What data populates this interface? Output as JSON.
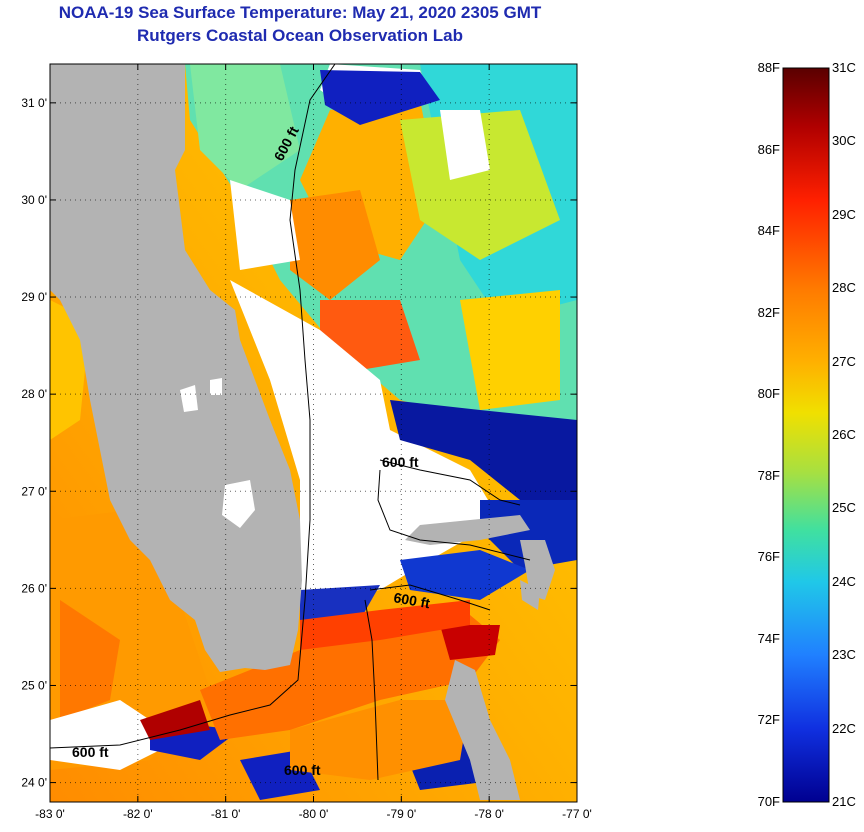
{
  "title": "NOAA-19 Sea Surface Temperature:  May 21, 2020 2305 GMT",
  "subtitle": "Rutgers Coastal Ocean Observation Lab",
  "map": {
    "lon_range": [
      -83,
      -77
    ],
    "lat_range": [
      23.8,
      31.4
    ],
    "lon_ticks": [
      "-83 0'",
      "-82 0'",
      "-81 0'",
      "-80 0'",
      "-79 0'",
      "-78 0'",
      "-77 0'"
    ],
    "lat_ticks": [
      "24 0'",
      "25 0'",
      "26 0'",
      "27 0'",
      "28 0'",
      "29 0'",
      "30 0'",
      "31 0'"
    ],
    "contour_label": "600 ft",
    "land_color": "#b3b3b3",
    "cloud_color": "#ffffff"
  },
  "colorbar": {
    "fahrenheit": [
      "88F",
      "86F",
      "84F",
      "82F",
      "80F",
      "78F",
      "76F",
      "74F",
      "72F",
      "70F"
    ],
    "celsius": [
      "31C",
      "30C",
      "29C",
      "28C",
      "27C",
      "26C",
      "25C",
      "24C",
      "23C",
      "22C",
      "21C"
    ],
    "colors": [
      "#5a0000",
      "#b00000",
      "#ff2000",
      "#ff7a00",
      "#ffb000",
      "#f0e000",
      "#a8e040",
      "#40e0a0",
      "#20c8e8",
      "#2080ff",
      "#1030e0",
      "#000090"
    ]
  }
}
